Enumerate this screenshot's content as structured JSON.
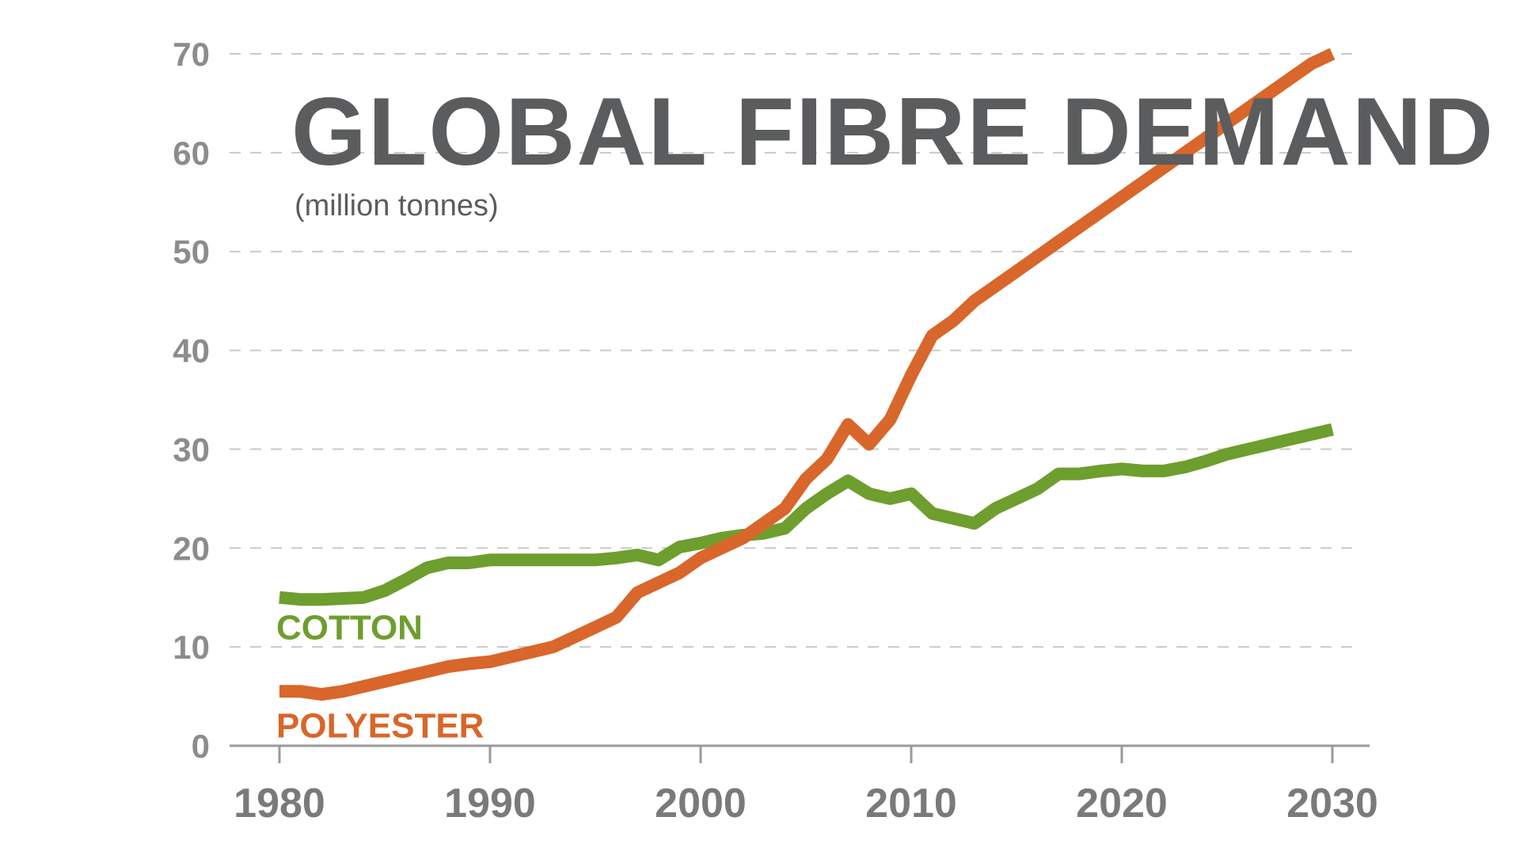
{
  "chart_data": {
    "type": "line",
    "title": "GLOBAL FIBRE DEMAND",
    "subtitle": "(million tonnes)",
    "xlabel": "",
    "ylabel": "",
    "xlim": [
      1980,
      2030
    ],
    "ylim": [
      0,
      70
    ],
    "x_ticks": [
      "1980",
      "1990",
      "2000",
      "2010",
      "2020",
      "2030"
    ],
    "y_ticks": [
      "0",
      "10",
      "20",
      "30",
      "40",
      "50",
      "60",
      "70"
    ],
    "grid": true,
    "legend": "inline-labels",
    "series": [
      {
        "name": "COTTON",
        "color": "#6e9e2e",
        "points": [
          [
            1980,
            15.0
          ],
          [
            1981,
            14.8
          ],
          [
            1982,
            14.8
          ],
          [
            1983,
            14.9
          ],
          [
            1984,
            15.0
          ],
          [
            1985,
            15.7
          ],
          [
            1986,
            16.8
          ],
          [
            1987,
            18.0
          ],
          [
            1988,
            18.5
          ],
          [
            1989,
            18.5
          ],
          [
            1990,
            18.8
          ],
          [
            1991,
            18.8
          ],
          [
            1992,
            18.8
          ],
          [
            1993,
            18.8
          ],
          [
            1994,
            18.8
          ],
          [
            1995,
            18.8
          ],
          [
            1996,
            19.0
          ],
          [
            1997,
            19.3
          ],
          [
            1998,
            18.8
          ],
          [
            1999,
            20.1
          ],
          [
            2000,
            20.5
          ],
          [
            2001,
            21.0
          ],
          [
            2002,
            21.3
          ],
          [
            2003,
            21.5
          ],
          [
            2004,
            22.0
          ],
          [
            2005,
            24.0
          ],
          [
            2006,
            25.5
          ],
          [
            2007,
            26.8
          ],
          [
            2008,
            25.5
          ],
          [
            2009,
            25.0
          ],
          [
            2010,
            25.5
          ],
          [
            2011,
            23.5
          ],
          [
            2012,
            23.0
          ],
          [
            2013,
            22.5
          ],
          [
            2014,
            24.0
          ],
          [
            2015,
            25.0
          ],
          [
            2016,
            26.0
          ],
          [
            2017,
            27.5
          ],
          [
            2018,
            27.5
          ],
          [
            2019,
            27.8
          ],
          [
            2020,
            28.0
          ],
          [
            2021,
            27.8
          ],
          [
            2022,
            27.8
          ],
          [
            2023,
            28.2
          ],
          [
            2024,
            28.8
          ],
          [
            2025,
            29.5
          ],
          [
            2026,
            30.0
          ],
          [
            2027,
            30.5
          ],
          [
            2028,
            31.0
          ],
          [
            2029,
            31.5
          ],
          [
            2030,
            32.0
          ]
        ]
      },
      {
        "name": "POLYESTER",
        "color": "#d9662a",
        "points": [
          [
            1980,
            5.5
          ],
          [
            1981,
            5.5
          ],
          [
            1982,
            5.2
          ],
          [
            1983,
            5.5
          ],
          [
            1984,
            6.0
          ],
          [
            1985,
            6.5
          ],
          [
            1986,
            7.0
          ],
          [
            1987,
            7.5
          ],
          [
            1988,
            8.0
          ],
          [
            1989,
            8.3
          ],
          [
            1990,
            8.5
          ],
          [
            1991,
            9.0
          ],
          [
            1992,
            9.5
          ],
          [
            1993,
            10.0
          ],
          [
            1994,
            11.0
          ],
          [
            1995,
            12.0
          ],
          [
            1996,
            13.0
          ],
          [
            1997,
            15.5
          ],
          [
            1998,
            16.5
          ],
          [
            1999,
            17.5
          ],
          [
            2000,
            19.0
          ],
          [
            2001,
            20.0
          ],
          [
            2002,
            21.0
          ],
          [
            2003,
            22.5
          ],
          [
            2004,
            24.0
          ],
          [
            2005,
            27.0
          ],
          [
            2006,
            29.0
          ],
          [
            2007,
            32.5
          ],
          [
            2008,
            30.5
          ],
          [
            2009,
            33.0
          ],
          [
            2010,
            37.5
          ],
          [
            2011,
            41.5
          ],
          [
            2012,
            43.0
          ],
          [
            2013,
            45.0
          ],
          [
            2014,
            46.5
          ],
          [
            2015,
            48.0
          ],
          [
            2016,
            49.5
          ],
          [
            2017,
            51.0
          ],
          [
            2018,
            52.5
          ],
          [
            2019,
            54.0
          ],
          [
            2020,
            55.5
          ],
          [
            2021,
            57.0
          ],
          [
            2022,
            58.5
          ],
          [
            2023,
            60.0
          ],
          [
            2024,
            61.5
          ],
          [
            2025,
            63.0
          ],
          [
            2026,
            64.5
          ],
          [
            2027,
            66.0
          ],
          [
            2028,
            67.5
          ],
          [
            2029,
            69.0
          ],
          [
            2030,
            70.0
          ]
        ]
      }
    ]
  }
}
